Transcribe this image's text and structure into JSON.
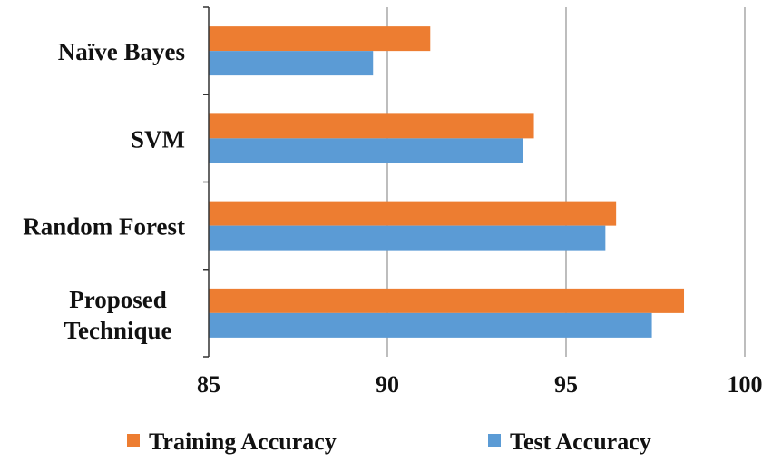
{
  "chart_data": {
    "type": "bar",
    "orientation": "horizontal",
    "categories": [
      "Naïve Bayes",
      "SVM",
      "Random Forest",
      "Proposed Technique"
    ],
    "series": [
      {
        "name": "Training Accuracy",
        "color": "#ED7D31",
        "values": [
          91.2,
          94.1,
          96.4,
          98.3
        ]
      },
      {
        "name": "Test Accuracy",
        "color": "#5B9BD5",
        "values": [
          89.6,
          93.8,
          96.1,
          97.4
        ]
      }
    ],
    "xlim": [
      85,
      100
    ],
    "xticks": [
      "85",
      "90",
      "95",
      "100"
    ],
    "grid": "vertical",
    "legend_position": "bottom",
    "title": "",
    "xlabel": "",
    "ylabel": ""
  }
}
